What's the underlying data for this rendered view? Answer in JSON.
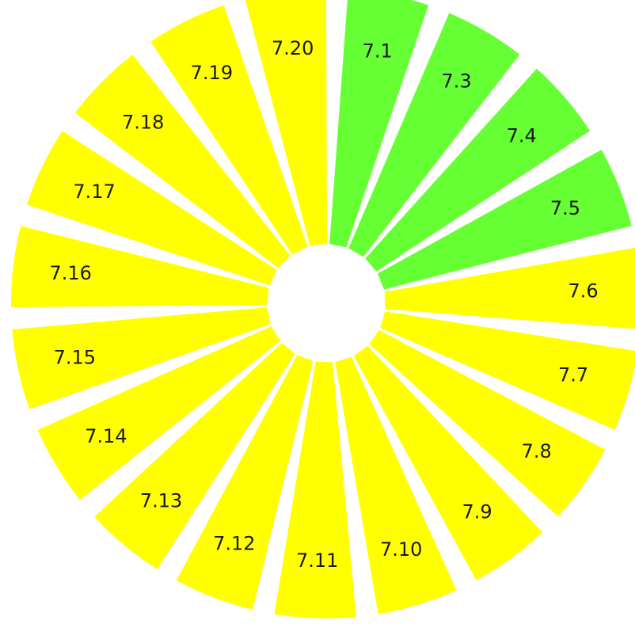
{
  "colors": {
    "complete": "#66ff33",
    "pending": "#ffff00",
    "background": "#ffffff",
    "text": "#1a1a1a"
  },
  "segments": [
    {
      "label": "7.1",
      "status": "complete"
    },
    {
      "label": "7.3",
      "status": "complete"
    },
    {
      "label": "7.4",
      "status": "complete"
    },
    {
      "label": "7.5",
      "status": "complete"
    },
    {
      "label": "7.6",
      "status": "pending"
    },
    {
      "label": "7.7",
      "status": "pending"
    },
    {
      "label": "7.8",
      "status": "pending"
    },
    {
      "label": "7.9",
      "status": "pending"
    },
    {
      "label": "7.10",
      "status": "pending"
    },
    {
      "label": "7.11",
      "status": "pending"
    },
    {
      "label": "7.12",
      "status": "pending"
    },
    {
      "label": "7.13",
      "status": "pending"
    },
    {
      "label": "7.14",
      "status": "pending"
    },
    {
      "label": "7.15",
      "status": "pending"
    },
    {
      "label": "7.16",
      "status": "pending"
    },
    {
      "label": "7.17",
      "status": "pending"
    },
    {
      "label": "7.18",
      "status": "pending"
    },
    {
      "label": "7.19",
      "status": "pending"
    },
    {
      "label": "7.20",
      "status": "pending"
    }
  ]
}
